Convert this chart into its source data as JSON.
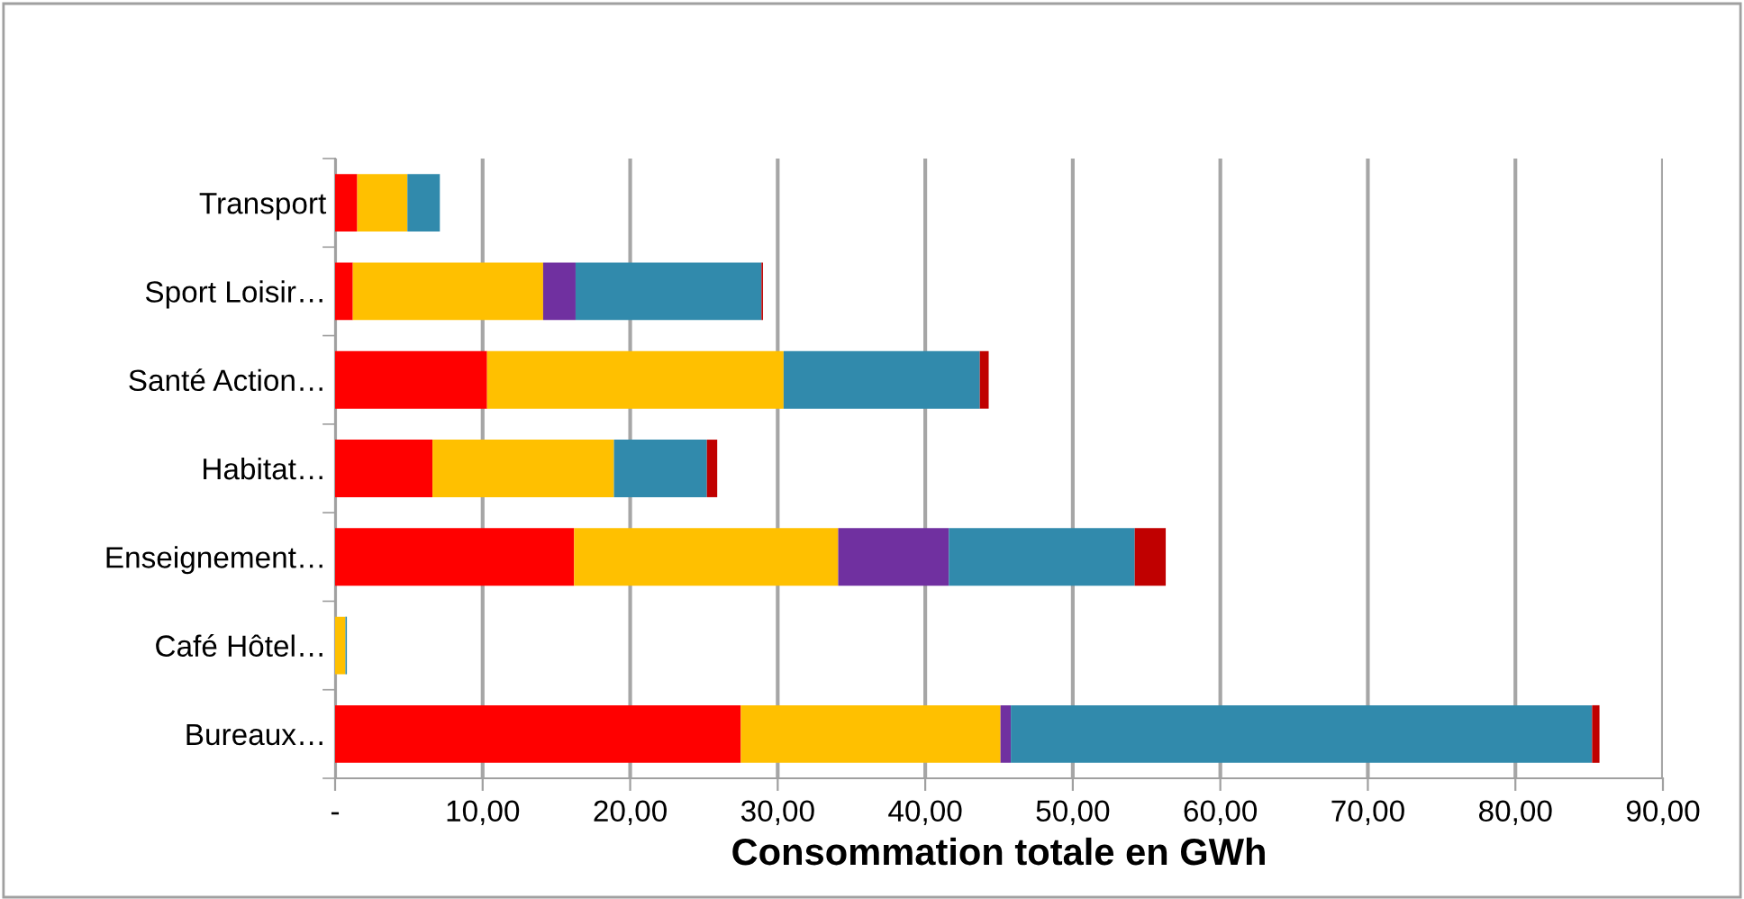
{
  "chart_data": {
    "type": "bar",
    "orientation": "horizontal",
    "stacked": true,
    "xlabel": "Consommation totale en GWh",
    "categories": [
      "Transport",
      "Sport Loisir…",
      "Santé Action…",
      "Habitat…",
      "Enseignement…",
      "Café Hôtel…",
      "Bureaux…"
    ],
    "series": [
      {
        "color": "#ff0000",
        "values": [
          1.5,
          1.2,
          10.3,
          6.6,
          16.2,
          0,
          27.5
        ]
      },
      {
        "color": "#ffc000",
        "values": [
          3.4,
          12.9,
          20.1,
          12.3,
          17.9,
          0.7,
          17.6
        ]
      },
      {
        "color": "#7030a0",
        "values": [
          0,
          2.2,
          0,
          0,
          7.5,
          0,
          0.7
        ]
      },
      {
        "color": "#318aac",
        "values": [
          2.2,
          12.6,
          13.3,
          6.3,
          12.6,
          0.1,
          39.4
        ]
      },
      {
        "color": "#c00000",
        "values": [
          0,
          0.1,
          0.6,
          0.7,
          2.1,
          0,
          0.5
        ]
      }
    ],
    "xlim": [
      0,
      90
    ],
    "xticks": [
      {
        "value": 0,
        "label": "-"
      },
      {
        "value": 10,
        "label": "10,00"
      },
      {
        "value": 20,
        "label": "20,00"
      },
      {
        "value": 30,
        "label": "30,00"
      },
      {
        "value": 40,
        "label": "40,00"
      },
      {
        "value": 50,
        "label": "50,00"
      },
      {
        "value": 60,
        "label": "60,00"
      },
      {
        "value": 70,
        "label": "70,00"
      },
      {
        "value": 80,
        "label": "80,00"
      },
      {
        "value": 90,
        "label": "90,00"
      }
    ],
    "grid": "x",
    "legend": false
  }
}
